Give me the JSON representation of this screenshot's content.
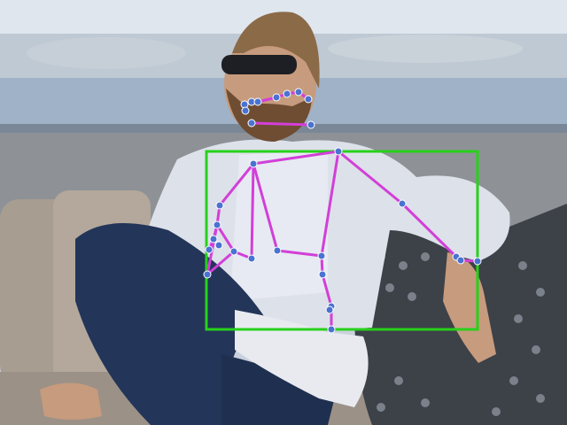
{
  "scene": {
    "description_icons": [
      "photo",
      "person",
      "sofa",
      "pillow",
      "railing"
    ],
    "colors": {
      "sky": "#dfe6ee",
      "city": "#b7c2cd",
      "rail_top": "#9fb2c8",
      "wall": "#8e9297",
      "sofa": "#a89d91",
      "pillow": "#3d4148",
      "shirt": "#e7eaf2",
      "blazer": "#dde1e9",
      "trousers": "#233559",
      "skin": "#c79b7d",
      "hair": "#8b6a48",
      "beard": "#6e4d33",
      "sock": "#e8eaf0",
      "box": "#27d11a",
      "skeleton": "#d23fd8",
      "keypoint": "#4a72d0"
    }
  },
  "annotation": {
    "box_label": "",
    "points_count": 30
  }
}
